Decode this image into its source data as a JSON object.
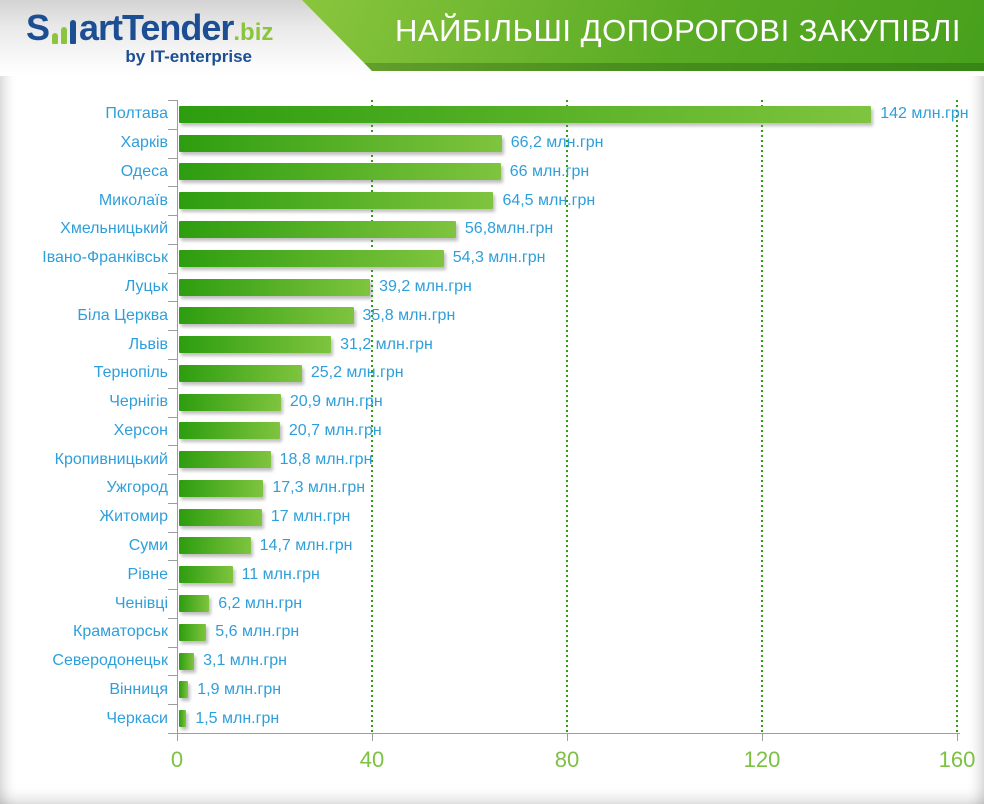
{
  "header": {
    "logo": {
      "prefix": "S",
      "bars_icon": "ascending-bar-chart-glyph",
      "name_rest": "artTender",
      "tld": ".biz",
      "byline": "by IT-enterprise"
    },
    "title": "НАЙБІЛЬШІ ДОПОРОГОВІ ЗАКУПІВЛІ"
  },
  "chart_data": {
    "type": "bar",
    "orientation": "horizontal",
    "title": "НАЙБІЛЬШІ ДОПОРОГОВІ ЗАКУПІВЛІ",
    "unit": "млн.грн",
    "categories": [
      "Полтава",
      "Харків",
      "Одеса",
      "Миколаїв",
      "Хмельницький",
      "Івано-Франківськ",
      "Луцьк",
      "Біла Церква",
      "Львів",
      "Тернопіль",
      "Чернігів",
      "Херсон",
      "Кропивницький",
      "Ужгород",
      "Житомир",
      "Суми",
      "Рівне",
      "Ченівці",
      "Краматорськ",
      "Северодонецьк",
      "Вінниця",
      "Черкаси"
    ],
    "values": [
      142,
      66.2,
      66,
      64.5,
      56.8,
      54.3,
      39.2,
      35.8,
      31.2,
      25.2,
      20.9,
      20.7,
      18.8,
      17.3,
      17,
      14.7,
      11,
      6.2,
      5.6,
      3.1,
      1.9,
      1.5
    ],
    "value_labels": [
      "142 млн.грн",
      "66,2 млн.грн",
      "66 млн.грн",
      "64,5 млн.грн",
      "56,8млн.грн",
      "54,3 млн.грн",
      "39,2 млн.грн",
      "35,8 млн.грн",
      "31,2 млн.грн",
      "25,2 млн.грн",
      "20,9 млн.грн",
      "20,7 млн.грн",
      "18,8 млн.грн",
      "17,3 млн.грн",
      "17 млн.грн",
      "14,7 млн.грн",
      "11 млн.грн",
      "6,2 млн.грн",
      "5,6 млн.грн",
      "3,1 млн.грн",
      "1,9 млн.грн",
      "1,5 млн.грн"
    ],
    "xlim": [
      0,
      160
    ],
    "x_ticks": [
      0,
      40,
      80,
      120,
      160
    ],
    "grid": "vertical dashed green lines at x ticks",
    "legend": "none",
    "colors": {
      "bar_gradient_start": "#2d9d0f",
      "bar_gradient_end": "#7fc43e",
      "category_and_value_labels": "#2e9fdb",
      "axis_tick_numbers": "#7cc142",
      "gridline": "#2f9e10",
      "axis_line": "#9d9d9d",
      "banner_green_light": "#8ac63e",
      "banner_green_dark": "#47a01c",
      "logo_navy": "#1c4e94",
      "logo_green": "#8bc53f"
    }
  }
}
